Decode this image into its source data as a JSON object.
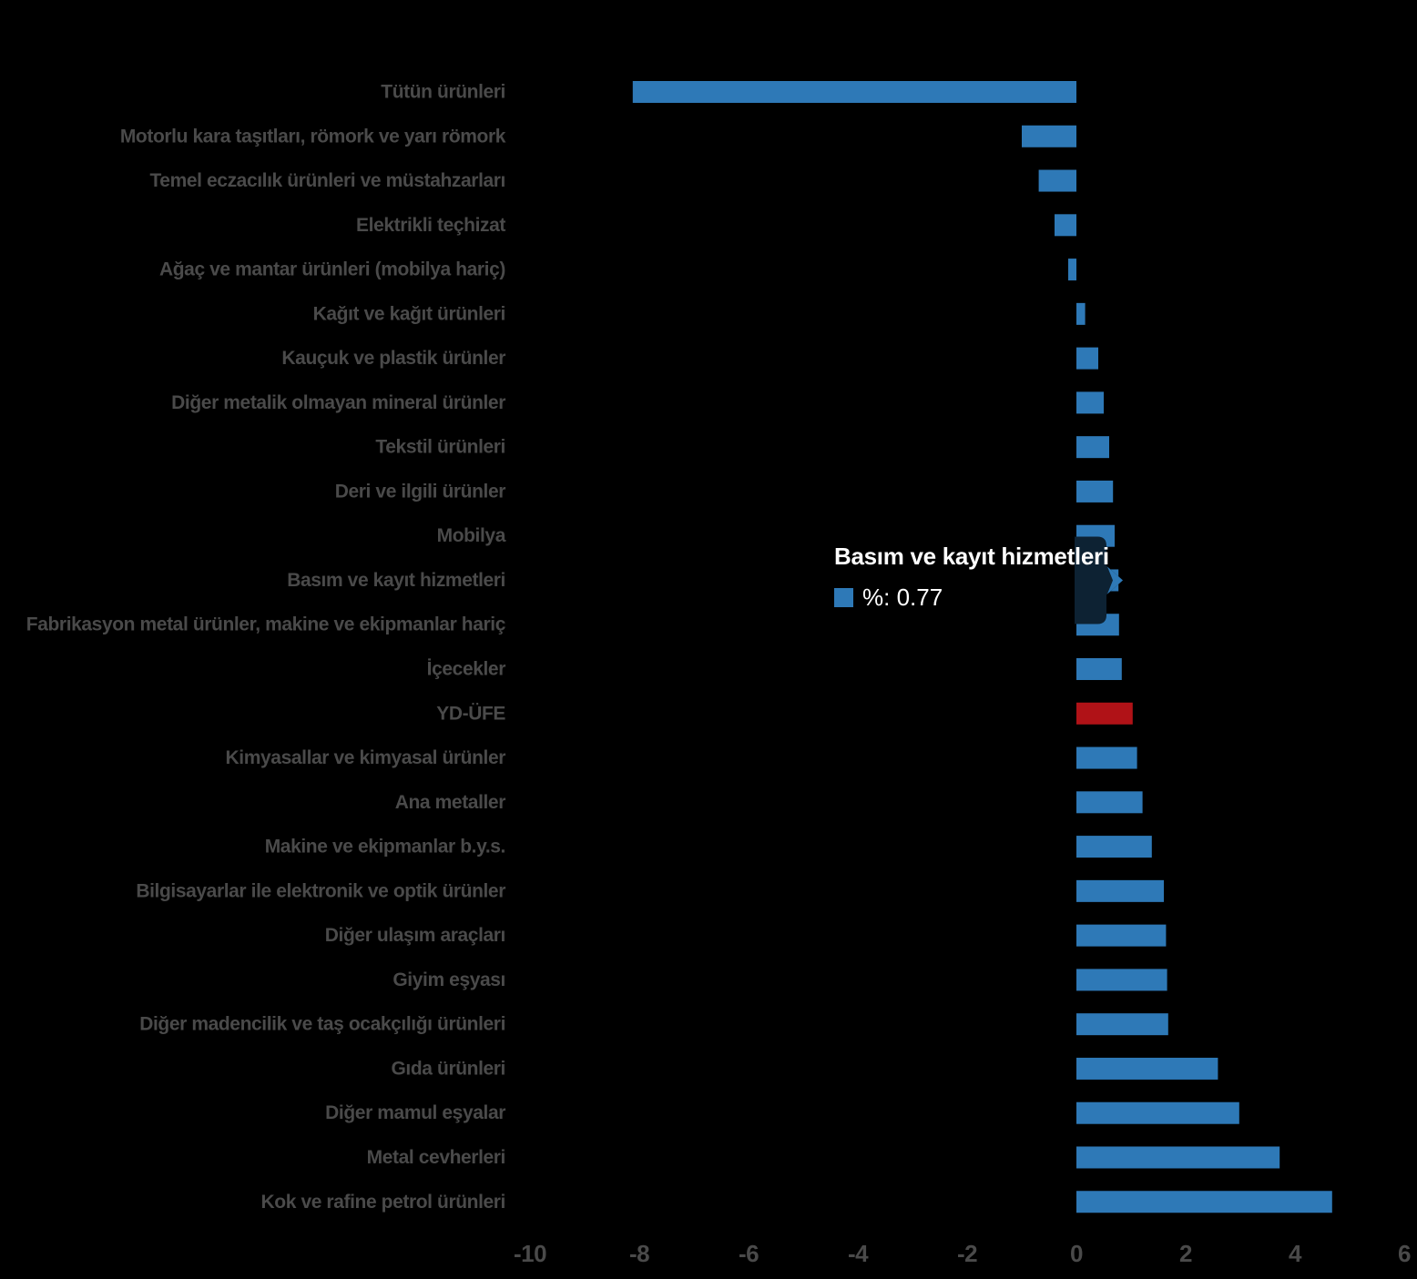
{
  "chart_data": {
    "type": "bar",
    "orientation": "horizontal",
    "title": "",
    "xlabel": "",
    "ylabel": "",
    "unit": "%",
    "grid": false,
    "legend_position": "none",
    "xlim": [
      -10.8,
      6.3
    ],
    "x_ticks": [
      -10,
      -8,
      -6,
      -4,
      -2,
      0,
      2,
      4,
      6
    ],
    "x_tick_labels": [
      "-10",
      "-8",
      "-6",
      "-4",
      "-2",
      "0",
      "2",
      "4",
      "6"
    ],
    "categories": [
      "Tütün ürünleri",
      "Motorlu kara taşıtları, römork ve yarı römork",
      "Temel eczacılık ürünleri ve müstahzarları",
      "Elektrikli teçhizat",
      "Ağaç ve mantar ürünleri (mobilya hariç)",
      "Kağıt ve kağıt ürünleri",
      "Kauçuk ve plastik ürünler",
      "Diğer metalik olmayan mineral ürünler",
      "Tekstil ürünleri",
      "Deri ve ilgili ürünler",
      "Mobilya",
      "Basım ve kayıt hizmetleri",
      "Fabrikasyon metal ürünler, makine ve ekipmanlar hariç",
      "İçecekler",
      "YD-ÜFE",
      "Kimyasallar ve kimyasal ürünler",
      "Ana metaller",
      "Makine ve ekipmanlar b.y.s.",
      "Bilgisayarlar ile elektronik ve optik ürünler",
      "Diğer ulaşım araçları",
      "Giyim eşyası",
      "Diğer madencilik ve taş ocakçılığı ürünleri",
      "Gıda ürünleri",
      "Diğer mamul eşyalar",
      "Metal cevherleri",
      "Kok ve rafine petrol ürünleri"
    ],
    "values": [
      -8.12,
      -1.0,
      -0.69,
      -0.4,
      -0.15,
      0.16,
      0.4,
      0.5,
      0.6,
      0.67,
      0.7,
      0.77,
      0.78,
      0.83,
      1.03,
      1.11,
      1.21,
      1.38,
      1.6,
      1.64,
      1.66,
      1.68,
      2.59,
      2.98,
      3.72,
      4.68
    ],
    "highlight_category": "YD-ÜFE"
  },
  "tooltip": {
    "title": "Basım ve kayıt hizmetleri",
    "series_label": "%",
    "value": 0.77,
    "value_text": "%: 0.77",
    "category_index": 11
  },
  "colors": {
    "bar": "#2E79B7",
    "highlight_bar": "#B01217",
    "background": "#000000",
    "label": "#4A4A4A",
    "tick": "#4A4A4A",
    "tooltip_text": "#FFFFFF",
    "callout": "#0D2233"
  }
}
